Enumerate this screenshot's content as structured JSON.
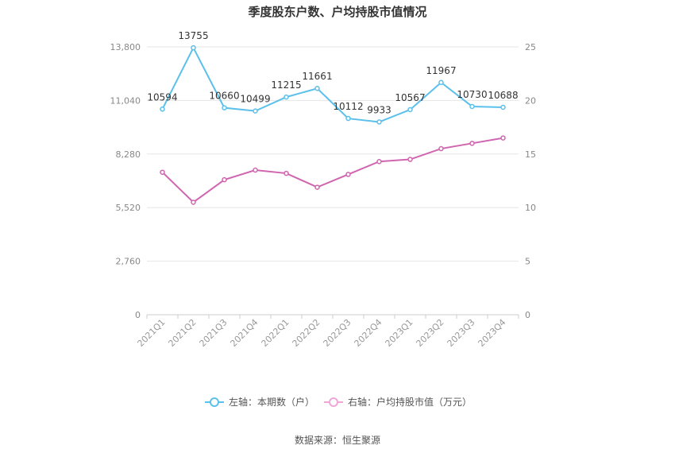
{
  "chart_data": {
    "type": "line",
    "title": "季度股东户数、户均持股市值情况",
    "categories": [
      "2021Q1",
      "2021Q2",
      "2021Q3",
      "2021Q4",
      "2022Q1",
      "2022Q2",
      "2022Q3",
      "2022Q4",
      "2023Q1",
      "2023Q2",
      "2023Q3",
      "2023Q4"
    ],
    "series": [
      {
        "name": "左轴：本期数（户）",
        "axis": "left",
        "color": "#5bc0eb",
        "values": [
          10594,
          13755,
          10660,
          10499,
          11215,
          11661,
          10112,
          9933,
          10567,
          11967,
          10730,
          10688
        ],
        "labels": [
          "10594",
          "13755",
          "10660",
          "10499",
          "11215",
          "11661",
          "10112",
          "9933",
          "10567",
          "11967",
          "10730",
          "10688"
        ]
      },
      {
        "name": "右轴：户均持股市值（万元）",
        "axis": "right",
        "color": "#d065b0",
        "values": [
          13.3,
          10.5,
          12.6,
          13.5,
          13.2,
          11.9,
          13.1,
          14.3,
          14.5,
          15.5,
          16.0,
          16.5
        ]
      }
    ],
    "left_axis": {
      "ylim": [
        0,
        13800
      ],
      "ticks": [
        "0",
        "2,760",
        "5,520",
        "8,280",
        "11,040",
        "13,800"
      ]
    },
    "right_axis": {
      "ylim": [
        0,
        25
      ],
      "ticks": [
        "0",
        "5",
        "10",
        "15",
        "20",
        "25"
      ]
    },
    "grid": true,
    "legend_position": "bottom",
    "source": "数据来源：恒生聚源"
  }
}
